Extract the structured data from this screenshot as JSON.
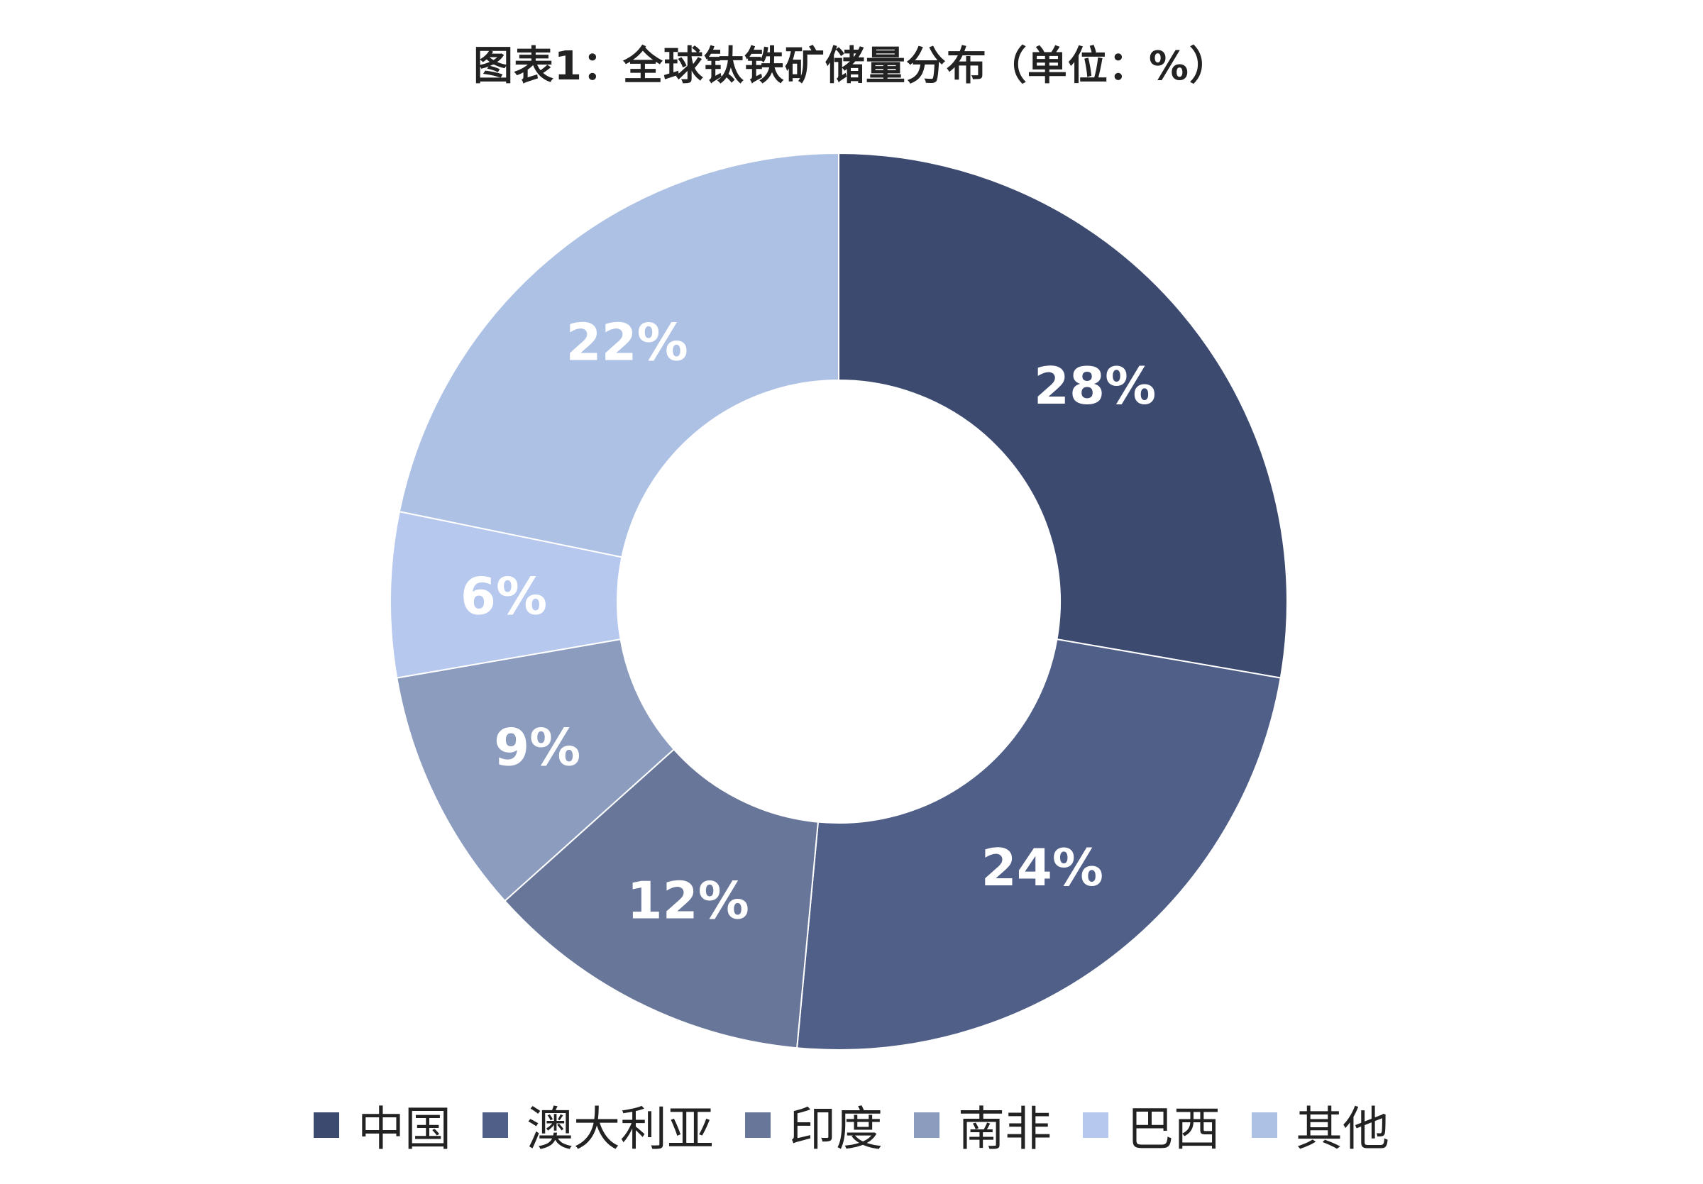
{
  "chart_data": {
    "type": "pie",
    "title": "图表1：全球钛铁矿储量分布（单位：%）",
    "unit": "%",
    "donut": true,
    "legend_position": "bottom",
    "slices": [
      {
        "name": "中国",
        "value": 28,
        "label": "28%",
        "color": "#3d4a70"
      },
      {
        "name": "澳大利亚",
        "value": 24,
        "label": "24%",
        "color": "#505f87"
      },
      {
        "name": "印度",
        "value": 12,
        "label": "12%",
        "color": "#687699"
      },
      {
        "name": "南非",
        "value": 9,
        "label": "9%",
        "color": "#8c9cbe"
      },
      {
        "name": "巴西",
        "value": 6,
        "label": "6%",
        "color": "#b6c8ee"
      },
      {
        "name": "其他",
        "value": 22,
        "label": "22%",
        "color": "#adc1e5"
      }
    ]
  }
}
